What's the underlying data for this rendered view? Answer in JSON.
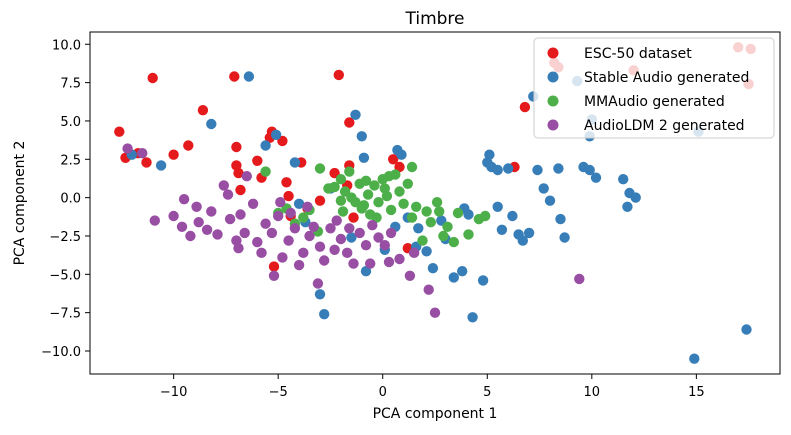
{
  "chart_data": {
    "type": "scatter",
    "title": "Timbre",
    "xlabel": "PCA component 1",
    "ylabel": "PCA component 2",
    "xlim": [
      -14,
      19
    ],
    "ylim": [
      -11.5,
      10.8
    ],
    "xticks": [
      -10,
      -5,
      0,
      5,
      10,
      15
    ],
    "yticks": [
      -10.0,
      -7.5,
      -5.0,
      -2.5,
      0.0,
      2.5,
      5.0,
      7.5,
      10.0
    ],
    "xtick_labels": [
      "−10",
      "−5",
      "0",
      "5",
      "10",
      "15"
    ],
    "ytick_labels": [
      "−10.0",
      "−7.5",
      "−5.0",
      "−2.5",
      "0.0",
      "2.5",
      "5.0",
      "7.5",
      "10.0"
    ],
    "legend_position": "top-right",
    "series": [
      {
        "name": "ESC-50 dataset",
        "color": "#e41a1c",
        "points": [
          [
            -12.6,
            4.3
          ],
          [
            -12.3,
            2.6
          ],
          [
            -11.7,
            2.9
          ],
          [
            -11.3,
            2.3
          ],
          [
            -11.0,
            7.8
          ],
          [
            -10,
            2.8
          ],
          [
            -9.3,
            3.4
          ],
          [
            -8.6,
            5.7
          ],
          [
            -7.1,
            7.9
          ],
          [
            -7.0,
            3.3
          ],
          [
            -7.0,
            2.1
          ],
          [
            -6.9,
            1.6
          ],
          [
            -6.8,
            0.5
          ],
          [
            -6.0,
            2.4
          ],
          [
            -5.8,
            1.3
          ],
          [
            -5.4,
            3.9
          ],
          [
            -5.3,
            4.3
          ],
          [
            -4.8,
            3.7
          ],
          [
            -4.6,
            1.0
          ],
          [
            -4.5,
            0.1
          ],
          [
            -4.4,
            -1.2
          ],
          [
            -3.9,
            2.3
          ],
          [
            -3.6,
            -0.7
          ],
          [
            -3.0,
            -0.2
          ],
          [
            -2.3,
            1.6
          ],
          [
            -2.1,
            8.0
          ],
          [
            -1.6,
            4.9
          ],
          [
            -1.7,
            0.8
          ],
          [
            -1.6,
            2.1
          ],
          [
            -1.4,
            -1.3
          ],
          [
            0.5,
            2.5
          ],
          [
            0.8,
            2.0
          ],
          [
            1.2,
            -3.3
          ],
          [
            -5.2,
            -4.5
          ],
          [
            6.3,
            2.0
          ],
          [
            6.8,
            5.9
          ],
          [
            8.2,
            8.8
          ],
          [
            8.4,
            8.5
          ],
          [
            12.0,
            8.3
          ],
          [
            17.0,
            9.8
          ],
          [
            17.6,
            9.7
          ],
          [
            17.5,
            7.4
          ]
        ]
      },
      {
        "name": "Stable Audio generated",
        "color": "#377eb8",
        "points": [
          [
            -12,
            2.8
          ],
          [
            -10.6,
            2.1
          ],
          [
            -8.2,
            4.8
          ],
          [
            -6.4,
            7.9
          ],
          [
            -5.6,
            3.4
          ],
          [
            -5.1,
            4.1
          ],
          [
            -4.0,
            -0.4
          ],
          [
            -4.2,
            2.3
          ],
          [
            -3.7,
            -1.6
          ],
          [
            -3.0,
            -6.3
          ],
          [
            -2.8,
            -7.6
          ],
          [
            -2.5,
            0.6
          ],
          [
            -1.3,
            5.4
          ],
          [
            -1.0,
            4.0
          ],
          [
            -0.9,
            2.6
          ],
          [
            0.7,
            3.1
          ],
          [
            0.9,
            2.8
          ],
          [
            1.2,
            -1.3
          ],
          [
            1.7,
            -2.0
          ],
          [
            2.1,
            -3.5
          ],
          [
            2.8,
            -1.5
          ],
          [
            3.0,
            -2.7
          ],
          [
            3.4,
            -5.2
          ],
          [
            3.8,
            -4.8
          ],
          [
            4.1,
            -1.1
          ],
          [
            4.3,
            -7.8
          ],
          [
            4.8,
            -5.4
          ],
          [
            5.0,
            2.3
          ],
          [
            5.1,
            2.8
          ],
          [
            5.2,
            2.0
          ],
          [
            5.5,
            1.8
          ],
          [
            5.5,
            -0.6
          ],
          [
            5.7,
            -2.1
          ],
          [
            6.0,
            1.9
          ],
          [
            6.2,
            -1.2
          ],
          [
            6.5,
            -2.4
          ],
          [
            6.7,
            -2.8
          ],
          [
            7.0,
            -2.3
          ],
          [
            7.2,
            6.6
          ],
          [
            7.4,
            1.8
          ],
          [
            7.7,
            0.6
          ],
          [
            8.0,
            -0.2
          ],
          [
            8.4,
            1.9
          ],
          [
            8.5,
            -1.4
          ],
          [
            8.7,
            -2.6
          ],
          [
            9.3,
            7.6
          ],
          [
            9.6,
            2.0
          ],
          [
            10.0,
            5.1
          ],
          [
            9.9,
            4.0
          ],
          [
            9.9,
            1.8
          ],
          [
            10.2,
            1.3
          ],
          [
            11.5,
            1.2
          ],
          [
            11.8,
            0.3
          ],
          [
            11.7,
            -0.6
          ],
          [
            12.1,
            0.0
          ],
          [
            14.9,
            -10.5
          ],
          [
            17.4,
            -8.6
          ],
          [
            15.1,
            4.3
          ],
          [
            -1.5,
            -2.6
          ],
          [
            -0.8,
            -4.8
          ],
          [
            0.1,
            -3.4
          ],
          [
            0.6,
            -1.9
          ],
          [
            1.6,
            -3.2
          ],
          [
            2.4,
            -4.6
          ],
          [
            3.9,
            -0.7
          ]
        ]
      },
      {
        "name": "MMAudio generated",
        "color": "#4daf4a",
        "points": [
          [
            -5.6,
            1.7
          ],
          [
            -5.0,
            -1.0
          ],
          [
            -4.6,
            -0.7
          ],
          [
            -4.2,
            -1.7
          ],
          [
            -3.8,
            -1.3
          ],
          [
            -3.5,
            -0.8
          ],
          [
            -3.1,
            -2.2
          ],
          [
            -3.0,
            1.9
          ],
          [
            -2.6,
            0.6
          ],
          [
            -2.3,
            0.7
          ],
          [
            -2.0,
            -0.2
          ],
          [
            -1.8,
            0.4
          ],
          [
            -1.5,
            0.0
          ],
          [
            -1.3,
            -0.3
          ],
          [
            -1.1,
            0.9
          ],
          [
            -0.9,
            -0.5
          ],
          [
            -0.7,
            0.2
          ],
          [
            -0.6,
            -1.1
          ],
          [
            -0.4,
            0.8
          ],
          [
            -0.2,
            -0.3
          ],
          [
            0.0,
            1.2
          ],
          [
            0.2,
            0.1
          ],
          [
            0.4,
            -0.8
          ],
          [
            0.6,
            1.5
          ],
          [
            0.8,
            0.4
          ],
          [
            1.0,
            -0.4
          ],
          [
            1.2,
            0.9
          ],
          [
            1.4,
            -1.3
          ],
          [
            1.6,
            -0.6
          ],
          [
            1.9,
            -2.8
          ],
          [
            2.1,
            -0.9
          ],
          [
            2.3,
            -1.6
          ],
          [
            2.6,
            -0.3
          ],
          [
            2.9,
            -2.5
          ],
          [
            3.1,
            -1.9
          ],
          [
            3.4,
            -2.9
          ],
          [
            3.6,
            -1.0
          ],
          [
            4.1,
            -2.4
          ],
          [
            4.6,
            -1.4
          ],
          [
            4.9,
            -1.2
          ],
          [
            -2.0,
            1.2
          ],
          [
            -1.6,
            1.7
          ],
          [
            -1.0,
            -0.7
          ],
          [
            -0.3,
            -1.3
          ],
          [
            0.1,
            0.6
          ],
          [
            0.3,
            1.4
          ],
          [
            1.4,
            2.0
          ],
          [
            2.7,
            -0.9
          ],
          [
            -0.8,
            1.1
          ],
          [
            -1.9,
            -0.9
          ]
        ]
      },
      {
        "name": "AudioLDM 2 generated",
        "color": "#984ea3",
        "points": [
          [
            -12.2,
            3.2
          ],
          [
            -11.5,
            2.9
          ],
          [
            -10.9,
            -1.5
          ],
          [
            -10.0,
            -1.2
          ],
          [
            -9.6,
            -1.9
          ],
          [
            -9.2,
            -2.5
          ],
          [
            -8.8,
            -1.6
          ],
          [
            -8.4,
            -2.1
          ],
          [
            -8.2,
            -0.9
          ],
          [
            -7.9,
            -2.4
          ],
          [
            -7.6,
            0.8
          ],
          [
            -7.3,
            -1.4
          ],
          [
            -7.0,
            -2.8
          ],
          [
            -6.8,
            -1.1
          ],
          [
            -6.5,
            1.4
          ],
          [
            -6.2,
            -0.4
          ],
          [
            -6.0,
            -2.9
          ],
          [
            -5.8,
            -3.6
          ],
          [
            -5.6,
            -1.7
          ],
          [
            -5.3,
            -2.3
          ],
          [
            -5.0,
            -1.2
          ],
          [
            -4.8,
            -3.9
          ],
          [
            -4.5,
            -2.8
          ],
          [
            -4.2,
            -2.0
          ],
          [
            -4.0,
            -4.4
          ],
          [
            -3.8,
            -3.6
          ],
          [
            -3.5,
            -2.5
          ],
          [
            -3.3,
            -1.9
          ],
          [
            -3.0,
            -3.2
          ],
          [
            -2.8,
            -4.1
          ],
          [
            -2.5,
            -2.0
          ],
          [
            -2.2,
            -1.5
          ],
          [
            -2.0,
            -2.7
          ],
          [
            -1.7,
            -3.6
          ],
          [
            -1.4,
            -4.3
          ],
          [
            -1.1,
            -2.3
          ],
          [
            -0.8,
            -3.1
          ],
          [
            -0.5,
            -1.8
          ],
          [
            -0.2,
            -2.6
          ],
          [
            0.1,
            -3.1
          ],
          [
            0.4,
            -2.3
          ],
          [
            0.8,
            -4.0
          ],
          [
            1.3,
            -5.1
          ],
          [
            1.5,
            -3.6
          ],
          [
            2.2,
            -6.0
          ],
          [
            2.5,
            -7.5
          ],
          [
            9.4,
            -5.3
          ],
          [
            -3.6,
            -0.6
          ],
          [
            -4.9,
            -0.3
          ],
          [
            -6.9,
            -3.3
          ],
          [
            -5.2,
            -5.1
          ],
          [
            -3.1,
            -5.6
          ],
          [
            -2.3,
            -3.4
          ],
          [
            -1.6,
            -2.0
          ],
          [
            -0.6,
            -4.3
          ],
          [
            0.3,
            -4.2
          ],
          [
            -8.9,
            -0.6
          ],
          [
            -9.5,
            -0.1
          ],
          [
            -7.4,
            0.2
          ],
          [
            -6.6,
            -2.3
          ],
          [
            -4.4,
            -1.0
          ]
        ]
      }
    ]
  }
}
